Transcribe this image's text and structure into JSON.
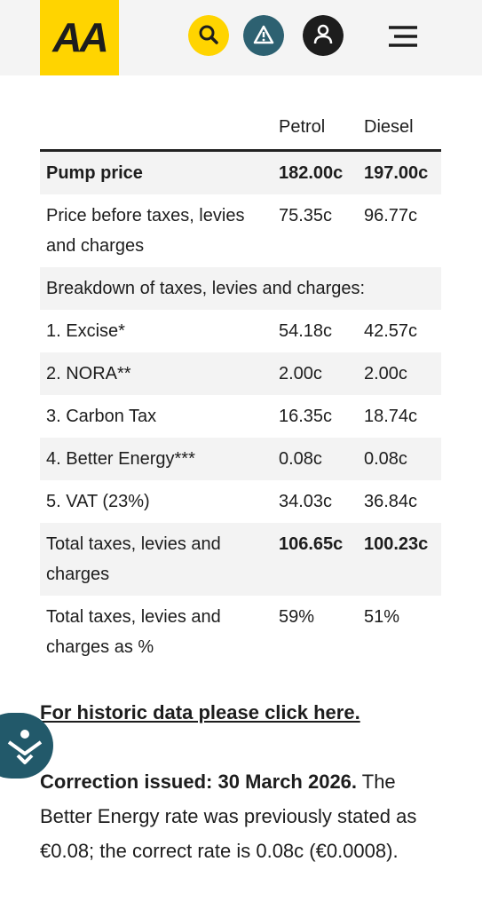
{
  "header": {
    "logo": "AA"
  },
  "table": {
    "columns": [
      "Petrol",
      "Diesel"
    ],
    "pump_price": [
      "Pump price",
      "182.00c",
      "197.00c"
    ],
    "before_taxes": [
      "Price before taxes, levies and charges",
      "75.35c",
      "96.77c"
    ],
    "breakdown_heading": "Breakdown of taxes, levies and charges:",
    "breakdown": [
      [
        "1. Excise*",
        "54.18c",
        "42.57c"
      ],
      [
        "2. NORA**",
        "2.00c",
        "2.00c"
      ],
      [
        "3. Carbon Tax",
        "16.35c",
        "18.74c"
      ],
      [
        "4. Better Energy***",
        "0.08c",
        "0.08c"
      ],
      [
        "5. VAT (23%)",
        "34.03c",
        "36.84c"
      ]
    ],
    "total": [
      "Total taxes, levies and charges",
      "106.65c",
      "100.23c"
    ],
    "total_percent": [
      "Total taxes, levies and charges as %",
      "59%",
      "51%"
    ]
  },
  "link": "For historic data please click here.",
  "note": {
    "bold": "Correction issued: 30 March 2026.",
    "text": "The Better Energy rate was previously stated as €0.08; the correct rate is 0.08c (€0.0008)."
  }
}
